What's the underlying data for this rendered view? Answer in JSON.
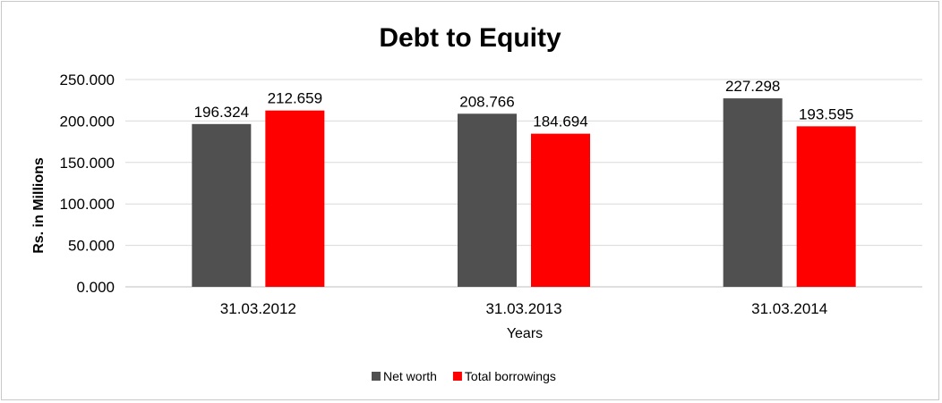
{
  "chart_data": {
    "type": "bar",
    "title": "Debt to Equity",
    "xlabel": "Years",
    "ylabel": "Rs. in Millions",
    "categories": [
      "31.03.2012",
      "31.03.2013",
      "31.03.2014"
    ],
    "series": [
      {
        "name": "Net worth",
        "color": "#505050",
        "values": [
          196.324,
          208.766,
          227.298
        ],
        "labels": [
          "196.324",
          "208.766",
          "227.298"
        ]
      },
      {
        "name": "Total borrowings",
        "color": "#ff0000",
        "values": [
          212.659,
          184.694,
          193.595
        ],
        "labels": [
          "212.659",
          "184.694",
          "193.595"
        ]
      }
    ],
    "ylim": [
      0,
      250
    ],
    "yticks": [
      "0.000",
      "50.000",
      "100.000",
      "150.000",
      "200.000",
      "250.000"
    ],
    "ytick_values": [
      0,
      50,
      100,
      150,
      200,
      250
    ],
    "grid": true,
    "legend": "bottom"
  }
}
